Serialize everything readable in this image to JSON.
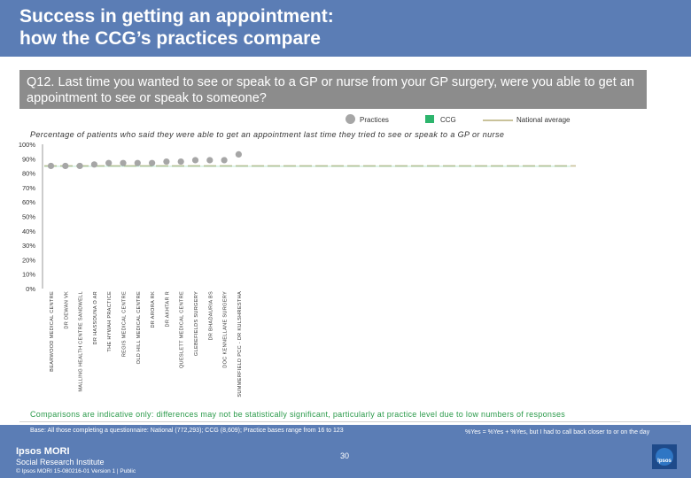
{
  "header": {
    "title": "Success in getting an appointment:\nhow the CCG’s practices compare"
  },
  "question": {
    "text": "Q12. Last time you wanted to see or speak to a GP or nurse from your GP surgery, were you able to get an appointment to see or speak to someone?"
  },
  "legend": {
    "practices": "Practices",
    "ccg": "CCG",
    "national": "National average"
  },
  "subtitle": "Percentage of patients who said they were able to get an appointment last time they tried to see or speak to a GP or nurse",
  "chart_data": {
    "type": "scatter",
    "ylim": [
      0,
      100
    ],
    "yticks": [
      "100%",
      "90%",
      "80%",
      "70%",
      "60%",
      "50%",
      "40%",
      "30%",
      "20%",
      "10%",
      "0%"
    ],
    "grid": false,
    "legend_position": "top-right",
    "categories": [
      "BEARWOOD MEDICAL CENTRE",
      "DR DEWAN VK",
      "MALLING HEALTH CENTRE SANDWELL",
      "DR HASSOUNA O AR",
      "THE HYWAH PRACTICE",
      "REGIS MEDICAL CENTRE",
      "OLD HILL MEDICAL CENTRE",
      "DR ARORA RK",
      "DR AKHTAR R",
      "QUESLETT MEDICAL CENTRE",
      "GLEBEFIELDS SURGERY",
      "DR BHADAURIA BS",
      "DOC KENNELLANE SURGERY",
      "SUMMERFIELD PCC - DR KULSHRESTHA"
    ],
    "series": [
      {
        "name": "Practices",
        "values": [
          85,
          85,
          85,
          86,
          87,
          87,
          87,
          87,
          88,
          88,
          89,
          89,
          89,
          93
        ]
      }
    ],
    "ccg_value": 85,
    "national_average": 85,
    "colors": {
      "practices": "#a6a6a6",
      "ccg": "#2db56d",
      "national": "#c9c29a"
    }
  },
  "footer": {
    "note": "Comparisons are indicative only: differences may not be statistically significant, particularly at practice level due to low numbers of responses",
    "base": "Base: All those completing a questionnaire: National (772,293); CCG (8,609); Practice bases range from 16 to 123",
    "definition": "%Yes = %Yes + %Yes, but I had to call back closer to or on the day",
    "logo_line1": "Ipsos MORI",
    "logo_line2": "Social Research Institute",
    "copyright": "© Ipsos MORI     15-080216-01 Version 1 | Public",
    "page_number": "30",
    "ipsos_badge": "Ipsos"
  }
}
